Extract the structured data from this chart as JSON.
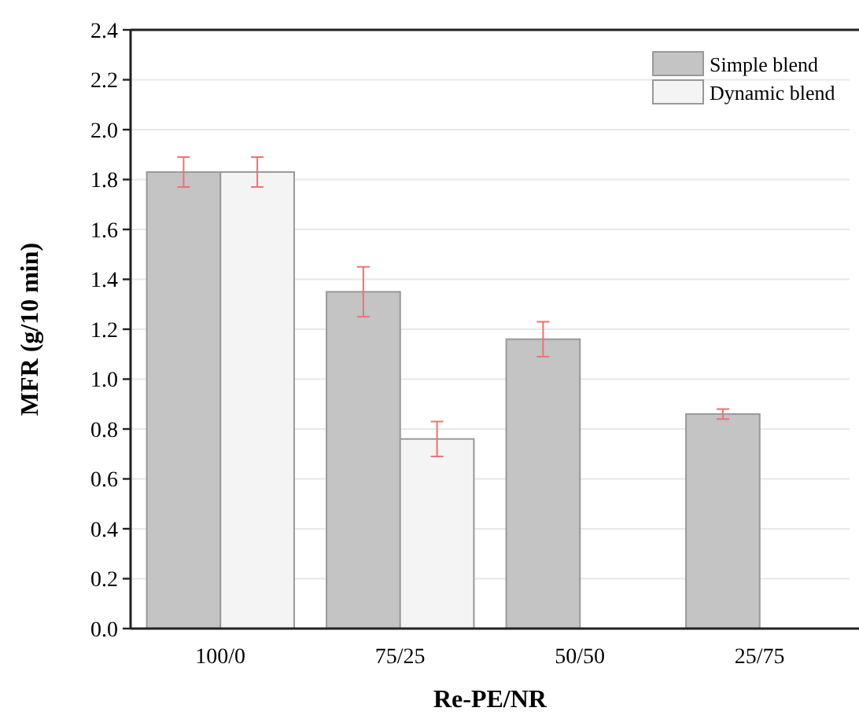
{
  "chart_data": {
    "type": "bar",
    "xlabel": "Re-PE/NR",
    "ylabel": "MFR (g/10 min)",
    "categories": [
      "100/0",
      "75/25",
      "50/50",
      "25/75"
    ],
    "series": [
      {
        "name": "Simple blend",
        "color": "#c4c4c4",
        "values": [
          1.83,
          1.35,
          1.16,
          0.86
        ],
        "errors": [
          0.06,
          0.1,
          0.07,
          0.02
        ]
      },
      {
        "name": "Dynamic blend",
        "color": "#f4f4f4",
        "values": [
          1.83,
          0.76,
          null,
          null
        ],
        "errors": [
          0.06,
          0.07,
          null,
          null
        ]
      }
    ],
    "ylim": [
      0,
      2.4
    ],
    "yticks": [
      {
        "value": 0,
        "label": "0.0"
      },
      0.2,
      0.4,
      0.6,
      0.8,
      {
        "value": 1,
        "label": "1.0"
      },
      1.2,
      1.4,
      1.6,
      1.8,
      {
        "value": 2,
        "label": "2.0"
      },
      2.2,
      2.4
    ],
    "grid": "y",
    "legend": "top right"
  }
}
